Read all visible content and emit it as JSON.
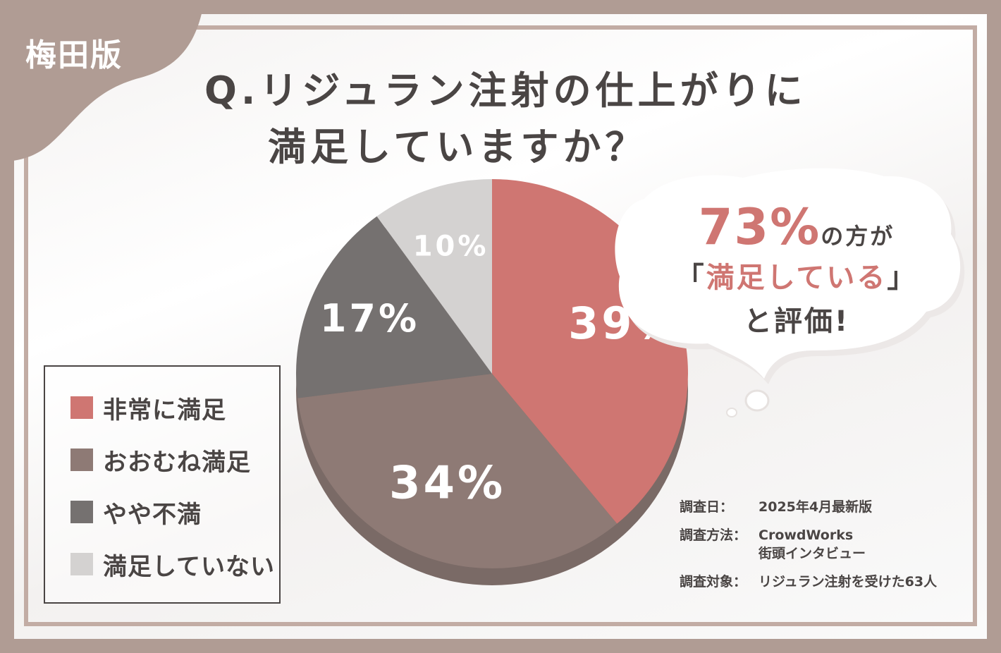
{
  "badge": "梅田版",
  "title": {
    "line1": "Q.リジュラン注射の仕上がりに",
    "line2": "満足していますか？"
  },
  "bubble": {
    "highlight": "73%",
    "line1_rest": "の方が",
    "line2_open": "「",
    "line2_accent": "満足している",
    "line2_close": "」",
    "line3": "と評価!"
  },
  "chart_data": {
    "type": "pie",
    "series": [
      {
        "name": "非常に満足",
        "value": 39,
        "label": "39%",
        "color": "#cf7672"
      },
      {
        "name": "おおむね満足",
        "value": 34,
        "label": "34%",
        "color": "#8e7a75"
      },
      {
        "name": "やや不満",
        "value": 17,
        "label": "17%",
        "color": "#757170"
      },
      {
        "name": "満足していない",
        "value": 10,
        "label": "10%",
        "color": "#d4d2d1"
      }
    ],
    "legend_position": "left"
  },
  "notes": {
    "date_key": "調査日：",
    "date_val": "2025年4月最新版",
    "method_key": "調査方法：",
    "method_val1": "CrowdWorks",
    "method_val2": "街頭インタビュー",
    "target_key": "調査対象：",
    "target_val": "リジュラン注射を受けた63人"
  }
}
